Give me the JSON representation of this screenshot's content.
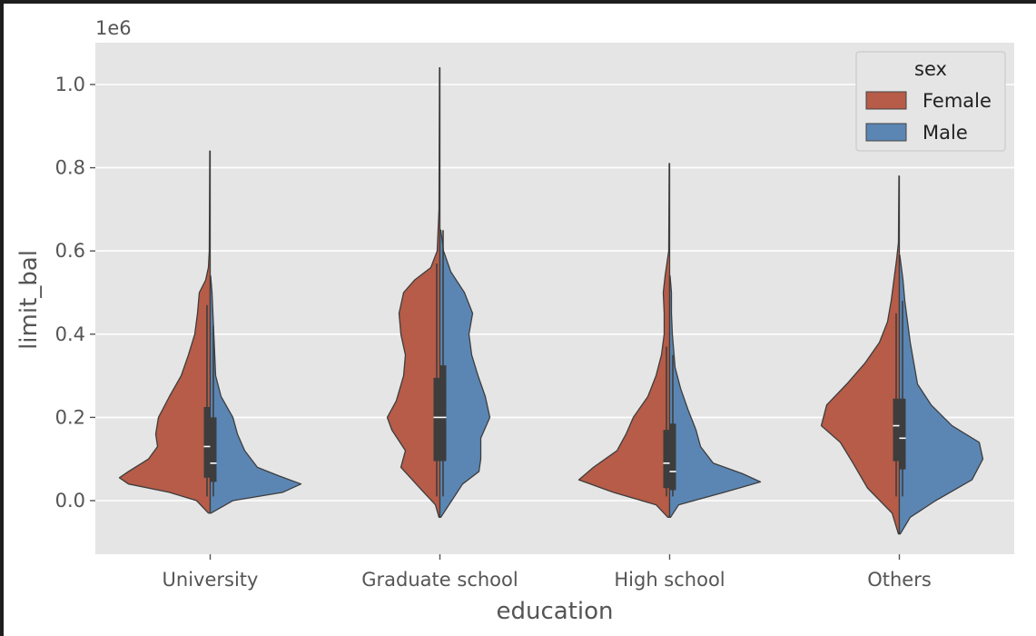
{
  "chart_data": {
    "type": "violin",
    "split": true,
    "title": "",
    "xlabel": "education",
    "ylabel": "limit_bal",
    "y_offset_label": "1e6",
    "y_scale": 1000000,
    "ylim": [
      -130000,
      1100000
    ],
    "yticks": [
      0,
      200000,
      400000,
      600000,
      800000,
      1000000
    ],
    "ytick_labels": [
      "0.0",
      "0.2",
      "0.4",
      "0.6",
      "0.8",
      "1.0"
    ],
    "grid": true,
    "legend": {
      "title": "sex",
      "position": "top-right"
    },
    "categories": [
      "University",
      "Graduate school",
      "High school",
      "Others"
    ],
    "series": [
      {
        "name": "Female",
        "color": "#b65c48",
        "violins": [
          {
            "min": -30000,
            "max": 840000,
            "q1": 55000,
            "median": 130000,
            "q3": 225000,
            "whisker_low": 10000,
            "whisker_high": 470000,
            "profile": [
              [
                -30000,
                0.02
              ],
              [
                0,
                0.15
              ],
              [
                20000,
                0.45
              ],
              [
                40000,
                0.9
              ],
              [
                55000,
                1.0
              ],
              [
                70000,
                0.9
              ],
              [
                100000,
                0.68
              ],
              [
                130000,
                0.58
              ],
              [
                160000,
                0.6
              ],
              [
                200000,
                0.57
              ],
              [
                250000,
                0.45
              ],
              [
                300000,
                0.32
              ],
              [
                350000,
                0.24
              ],
              [
                400000,
                0.17
              ],
              [
                450000,
                0.14
              ],
              [
                500000,
                0.12
              ],
              [
                530000,
                0.05
              ],
              [
                560000,
                0.02
              ],
              [
                600000,
                0.01
              ],
              [
                840000,
                0.005
              ]
            ]
          },
          {
            "min": -40000,
            "max": 1040000,
            "q1": 95000,
            "median": 200000,
            "q3": 295000,
            "whisker_low": 10000,
            "whisker_high": 570000,
            "profile": [
              [
                -40000,
                0.01
              ],
              [
                -10000,
                0.05
              ],
              [
                30000,
                0.22
              ],
              [
                80000,
                0.43
              ],
              [
                120000,
                0.38
              ],
              [
                170000,
                0.53
              ],
              [
                200000,
                0.58
              ],
              [
                240000,
                0.48
              ],
              [
                300000,
                0.4
              ],
              [
                350000,
                0.38
              ],
              [
                400000,
                0.43
              ],
              [
                450000,
                0.45
              ],
              [
                500000,
                0.4
              ],
              [
                530000,
                0.28
              ],
              [
                560000,
                0.1
              ],
              [
                600000,
                0.03
              ],
              [
                700000,
                0.01
              ],
              [
                1040000,
                0.005
              ]
            ]
          },
          {
            "min": -40000,
            "max": 810000,
            "q1": 30000,
            "median": 90000,
            "q3": 170000,
            "whisker_low": 10000,
            "whisker_high": 370000,
            "profile": [
              [
                -40000,
                0.02
              ],
              [
                -10000,
                0.15
              ],
              [
                20000,
                0.62
              ],
              [
                50000,
                1.0
              ],
              [
                80000,
                0.84
              ],
              [
                120000,
                0.58
              ],
              [
                160000,
                0.48
              ],
              [
                200000,
                0.4
              ],
              [
                250000,
                0.24
              ],
              [
                300000,
                0.15
              ],
              [
                350000,
                0.09
              ],
              [
                400000,
                0.06
              ],
              [
                450000,
                0.06
              ],
              [
                500000,
                0.07
              ],
              [
                540000,
                0.05
              ],
              [
                600000,
                0.01
              ],
              [
                810000,
                0.005
              ]
            ]
          },
          {
            "min": -80000,
            "max": 780000,
            "q1": 95000,
            "median": 180000,
            "q3": 245000,
            "whisker_low": 10000,
            "whisker_high": 450000,
            "profile": [
              [
                -80000,
                0.01
              ],
              [
                -30000,
                0.08
              ],
              [
                30000,
                0.35
              ],
              [
                90000,
                0.51
              ],
              [
                140000,
                0.65
              ],
              [
                180000,
                0.86
              ],
              [
                230000,
                0.8
              ],
              [
                280000,
                0.58
              ],
              [
                330000,
                0.38
              ],
              [
                380000,
                0.22
              ],
              [
                430000,
                0.13
              ],
              [
                480000,
                0.09
              ],
              [
                530000,
                0.06
              ],
              [
                580000,
                0.03
              ],
              [
                620000,
                0.01
              ],
              [
                780000,
                0.005
              ]
            ]
          }
        ]
      },
      {
        "name": "Male",
        "color": "#5b86b4",
        "violins": [
          {
            "min": -30000,
            "max": 540000,
            "q1": 45000,
            "median": 90000,
            "q3": 200000,
            "whisker_low": 10000,
            "whisker_high": 420000,
            "profile": [
              [
                -30000,
                0.01
              ],
              [
                0,
                0.25
              ],
              [
                20000,
                0.8
              ],
              [
                40000,
                1.0
              ],
              [
                60000,
                0.75
              ],
              [
                80000,
                0.52
              ],
              [
                120000,
                0.38
              ],
              [
                160000,
                0.3
              ],
              [
                200000,
                0.25
              ],
              [
                250000,
                0.12
              ],
              [
                300000,
                0.06
              ],
              [
                400000,
                0.04
              ],
              [
                450000,
                0.03
              ],
              [
                500000,
                0.02
              ],
              [
                540000,
                0.005
              ]
            ]
          },
          {
            "min": -40000,
            "max": 650000,
            "q1": 95000,
            "median": 200000,
            "q3": 325000,
            "whisker_low": 10000,
            "whisker_high": 650000,
            "profile": [
              [
                -40000,
                0.01
              ],
              [
                0,
                0.13
              ],
              [
                40000,
                0.25
              ],
              [
                70000,
                0.43
              ],
              [
                100000,
                0.45
              ],
              [
                150000,
                0.45
              ],
              [
                200000,
                0.55
              ],
              [
                250000,
                0.5
              ],
              [
                300000,
                0.42
              ],
              [
                350000,
                0.35
              ],
              [
                400000,
                0.32
              ],
              [
                450000,
                0.36
              ],
              [
                500000,
                0.27
              ],
              [
                550000,
                0.12
              ],
              [
                600000,
                0.04
              ],
              [
                650000,
                0.01
              ]
            ]
          },
          {
            "min": -40000,
            "max": 540000,
            "q1": 25000,
            "median": 70000,
            "q3": 185000,
            "whisker_low": 10000,
            "whisker_high": 350000,
            "profile": [
              [
                -40000,
                0.01
              ],
              [
                -10000,
                0.1
              ],
              [
                20000,
                0.6
              ],
              [
                45000,
                1.0
              ],
              [
                65000,
                0.8
              ],
              [
                90000,
                0.48
              ],
              [
                130000,
                0.34
              ],
              [
                170000,
                0.29
              ],
              [
                220000,
                0.2
              ],
              [
                270000,
                0.12
              ],
              [
                320000,
                0.06
              ],
              [
                400000,
                0.03
              ],
              [
                450000,
                0.02
              ],
              [
                500000,
                0.02
              ],
              [
                540000,
                0.005
              ]
            ]
          },
          {
            "min": -80000,
            "max": 590000,
            "q1": 75000,
            "median": 150000,
            "q3": 245000,
            "whisker_low": 10000,
            "whisker_high": 480000,
            "profile": [
              [
                -80000,
                0.01
              ],
              [
                -40000,
                0.12
              ],
              [
                0,
                0.4
              ],
              [
                50000,
                0.8
              ],
              [
                100000,
                0.92
              ],
              [
                140000,
                0.88
              ],
              [
                180000,
                0.58
              ],
              [
                230000,
                0.35
              ],
              [
                280000,
                0.2
              ],
              [
                330000,
                0.16
              ],
              [
                380000,
                0.12
              ],
              [
                430000,
                0.09
              ],
              [
                480000,
                0.06
              ],
              [
                530000,
                0.04
              ],
              [
                590000,
                0.005
              ]
            ]
          }
        ]
      }
    ]
  }
}
